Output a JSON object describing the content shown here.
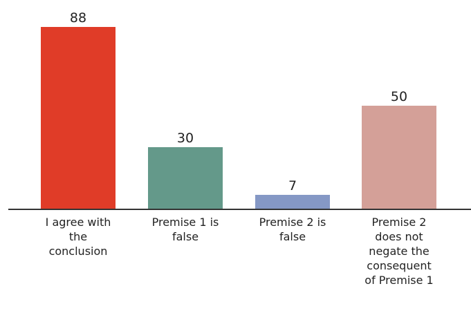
{
  "chart_data": {
    "type": "bar",
    "title": "",
    "xlabel": "",
    "ylabel": "",
    "ylim": [
      0,
      88
    ],
    "grid": false,
    "legend": "none",
    "categories": [
      "I agree with the conclusion",
      "Premise 1 is false",
      "Premise 2 is false",
      "Premise 2 does not negate the consequent of Premise 1"
    ],
    "category_lines": [
      [
        "I agree with",
        "the",
        "conclusion"
      ],
      [
        "Premise 1 is",
        "false"
      ],
      [
        "Premise 2 is",
        "false"
      ],
      [
        "Premise 2",
        "does not",
        "negate the",
        "consequent",
        "of Premise 1"
      ]
    ],
    "values": [
      88,
      30,
      7,
      50
    ],
    "value_labels": [
      "88",
      "30",
      "7",
      "50"
    ],
    "colors": [
      "#e03c28",
      "#64998a",
      "#8598c5",
      "#d4a098"
    ],
    "axis_color": "#333333"
  }
}
